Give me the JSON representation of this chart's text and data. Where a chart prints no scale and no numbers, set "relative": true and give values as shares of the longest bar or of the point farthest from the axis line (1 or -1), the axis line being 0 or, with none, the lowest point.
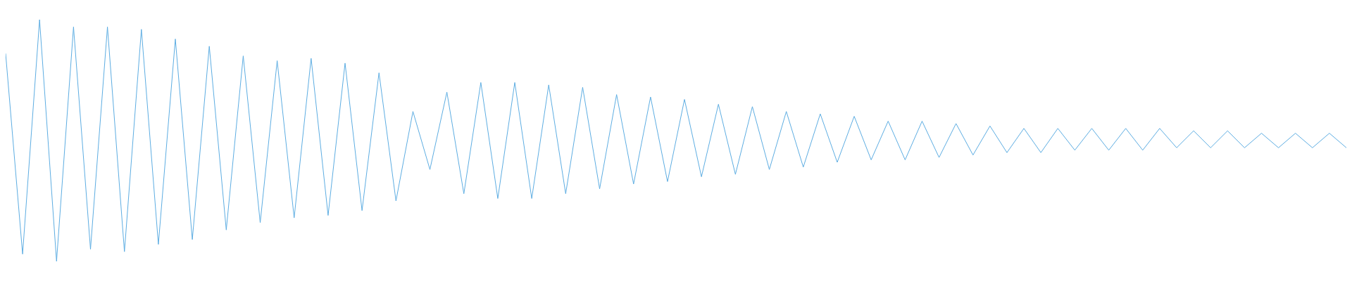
{
  "chart_data": {
    "type": "line",
    "relative": true,
    "color": "#5dade2",
    "categories": [
      null,
      null,
      null,
      null,
      null,
      null,
      null,
      null,
      null,
      null,
      null,
      null,
      null,
      null,
      null,
      null,
      null,
      null,
      null,
      null,
      null,
      null,
      null,
      null,
      null,
      null,
      null,
      null,
      null,
      null,
      null,
      null,
      null,
      null,
      null,
      null,
      null,
      null,
      null,
      null,
      null,
      null,
      null,
      null,
      null,
      null,
      null,
      null,
      null,
      null,
      null,
      null,
      null,
      null,
      null,
      null,
      null,
      null,
      null,
      null,
      null,
      null,
      null,
      null,
      null,
      null,
      null,
      null,
      null,
      null,
      null,
      null,
      null,
      null,
      null,
      null,
      null,
      null,
      null,
      null
    ],
    "values": [
      0.86,
      0.03,
      1.0,
      0,
      0.97,
      0.05,
      0.97,
      0.04,
      0.96,
      0.07,
      0.92,
      0.09,
      0.89,
      0.13,
      0.85,
      0.16,
      0.83,
      0.18,
      0.84,
      0.19,
      0.82,
      0.21,
      0.78,
      0.25,
      0.62,
      0.38,
      0.7,
      0.28,
      0.74,
      0.26,
      0.74,
      0.26,
      0.73,
      0.28,
      0.72,
      0.3,
      0.69,
      0.32,
      0.68,
      0.33,
      0.67,
      0.35,
      0.65,
      0.36,
      0.64,
      0.38,
      0.62,
      0.39,
      0.61,
      0.41,
      0.6,
      0.42,
      0.58,
      0.42,
      0.58,
      0.43,
      0.57,
      0.44,
      0.56,
      0.45,
      0.55,
      0.45,
      0.55,
      0.46,
      0.55,
      0.46,
      0.55,
      0.46,
      0.55,
      0.47,
      0.54,
      0.47,
      0.54,
      0.47,
      0.53,
      0.47,
      0.53,
      0.47,
      0.53,
      0.47
    ]
  }
}
